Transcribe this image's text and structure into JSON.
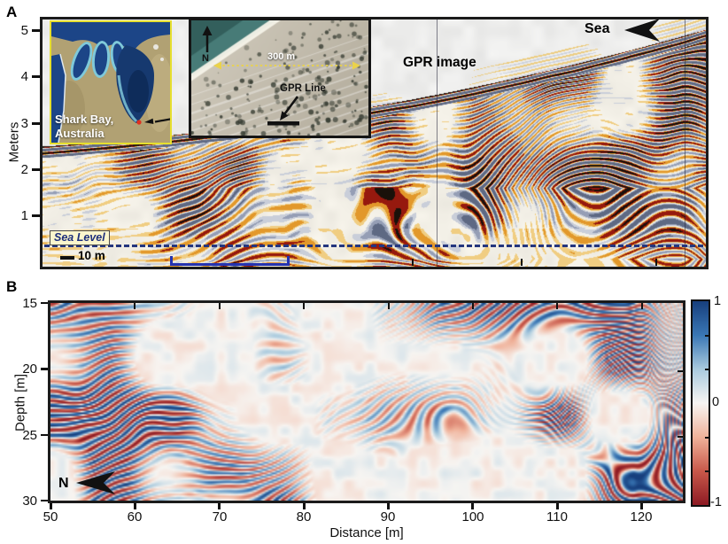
{
  "figure": {
    "background": "#ffffff"
  },
  "panelA": {
    "label": "A",
    "ylabel": "Meters",
    "yticks": [
      "5",
      "4",
      "3",
      "2",
      "1"
    ],
    "gpr_image_label": "GPR image",
    "sea_label": "Sea",
    "sea_level_label": "Sea Level",
    "scalebar_label": "10 m",
    "map_inset": {
      "line1": "Shark Bay,",
      "line2": "Australia"
    },
    "aerial_inset": {
      "north_label": "N",
      "scale_label": "300 m",
      "gpr_line_label": "GPR Line"
    }
  },
  "panelB": {
    "label": "B",
    "ylabel": "Depth [m]",
    "xlabel": "Distance [m]",
    "yticks": [
      "15",
      "20",
      "25",
      "30"
    ],
    "xticks": [
      "50",
      "60",
      "70",
      "80",
      "90",
      "100",
      "110",
      "120"
    ],
    "north_label": "N",
    "colorbar_ticks": [
      "1",
      "0",
      "-1"
    ]
  },
  "chart_data": [
    {
      "type": "heatmap",
      "panel": "A",
      "content": "GPR radargram (GPR image) of coastal beach ridge, Shark Bay, Australia",
      "ylabel": "Meters",
      "yticks": [
        5,
        4,
        3,
        2,
        1
      ],
      "scale_bar_m": 10,
      "annotations": [
        "Sea (left-pointing arrow, top right)",
        "Sea Level (dashed navy line near bottom)",
        "10 m scale bar",
        "blue bracket on bottom axis",
        "two thin vertical reference lines"
      ],
      "insets": [
        "satellite location map labelled Shark Bay, Australia with arrow to site",
        "aerial photo with N arrow, 300 m scale and GPR Line marker"
      ],
      "reflector_style": "red/black/yellow reflectors dipping and climbing up to the right above a light-grey masked surface; strong layered reflection along the ground surface",
      "palette": {
        "background": "#f2efe6",
        "above_surface": "#ededec",
        "pos": [
          "#f0cd82",
          "#e2982b",
          "#96190e",
          "#1a110a"
        ],
        "neg": [
          "#c9ced9",
          "#959eb5",
          "#5e6983"
        ]
      }
    },
    {
      "type": "heatmap",
      "panel": "B",
      "content": "normalized-amplitude depth section",
      "xlabel": "Distance [m]",
      "x_range": [
        50,
        125
      ],
      "xticks": [
        50,
        60,
        70,
        80,
        90,
        100,
        110,
        120
      ],
      "ylabel": "Depth [m]",
      "y_range": [
        15,
        30
      ],
      "yticks": [
        15,
        20,
        25,
        30
      ],
      "annotations": [
        "N (left-pointing arrow, bottom left)"
      ],
      "colorbar": {
        "range": [
          -1,
          1
        ],
        "ticks": [
          1,
          0,
          -1
        ],
        "stops_top_to_bottom": [
          "#173f7d",
          "#3a77b5",
          "#a9cade",
          "#f7f5f2",
          "#f0b29a",
          "#c8584a",
          "#8e1b24"
        ]
      },
      "texture": "smooth blue/red amplitude stripes dipping up to the right"
    }
  ]
}
